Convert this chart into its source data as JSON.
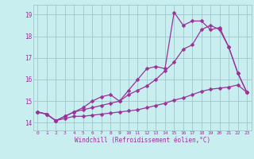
{
  "xlabel": "Windchill (Refroidissement éolien,°C)",
  "background_color": "#c8eef0",
  "grid_color": "#a0c8cc",
  "line_color": "#993399",
  "x_ticks": [
    0,
    1,
    2,
    3,
    4,
    5,
    6,
    7,
    8,
    9,
    10,
    11,
    12,
    13,
    14,
    15,
    16,
    17,
    18,
    19,
    20,
    21,
    22,
    23
  ],
  "y_ticks": [
    14,
    15,
    16,
    17,
    18,
    19
  ],
  "xlim": [
    -0.5,
    23.5
  ],
  "ylim": [
    13.65,
    19.45
  ],
  "series1_x": [
    0,
    1,
    2,
    3,
    4,
    5,
    6,
    7,
    8,
    9,
    10,
    11,
    12,
    13,
    14,
    15,
    16,
    17,
    18,
    19,
    20,
    21,
    22,
    23
  ],
  "series1_y": [
    14.5,
    14.4,
    14.1,
    14.2,
    14.3,
    14.3,
    14.35,
    14.4,
    14.45,
    14.5,
    14.55,
    14.6,
    14.7,
    14.8,
    14.9,
    15.05,
    15.15,
    15.3,
    15.45,
    15.55,
    15.6,
    15.65,
    15.75,
    15.4
  ],
  "series2_x": [
    0,
    1,
    2,
    3,
    4,
    5,
    6,
    7,
    8,
    9,
    10,
    11,
    12,
    13,
    14,
    15,
    16,
    17,
    18,
    19,
    20,
    21,
    22,
    23
  ],
  "series2_y": [
    14.5,
    14.4,
    14.1,
    14.3,
    14.5,
    14.6,
    14.7,
    14.8,
    14.9,
    15.0,
    15.3,
    15.5,
    15.7,
    16.0,
    16.4,
    16.8,
    17.4,
    17.6,
    18.3,
    18.5,
    18.3,
    17.5,
    16.3,
    15.4
  ],
  "series3_x": [
    0,
    1,
    2,
    3,
    4,
    5,
    6,
    7,
    8,
    9,
    10,
    11,
    12,
    13,
    14,
    15,
    16,
    17,
    18,
    19,
    20,
    21,
    22,
    23
  ],
  "series3_y": [
    14.5,
    14.4,
    14.1,
    14.3,
    14.5,
    14.7,
    15.0,
    15.2,
    15.3,
    15.0,
    15.5,
    16.0,
    16.5,
    16.6,
    16.5,
    19.1,
    18.5,
    18.7,
    18.7,
    18.3,
    18.4,
    17.5,
    16.3,
    15.4
  ]
}
